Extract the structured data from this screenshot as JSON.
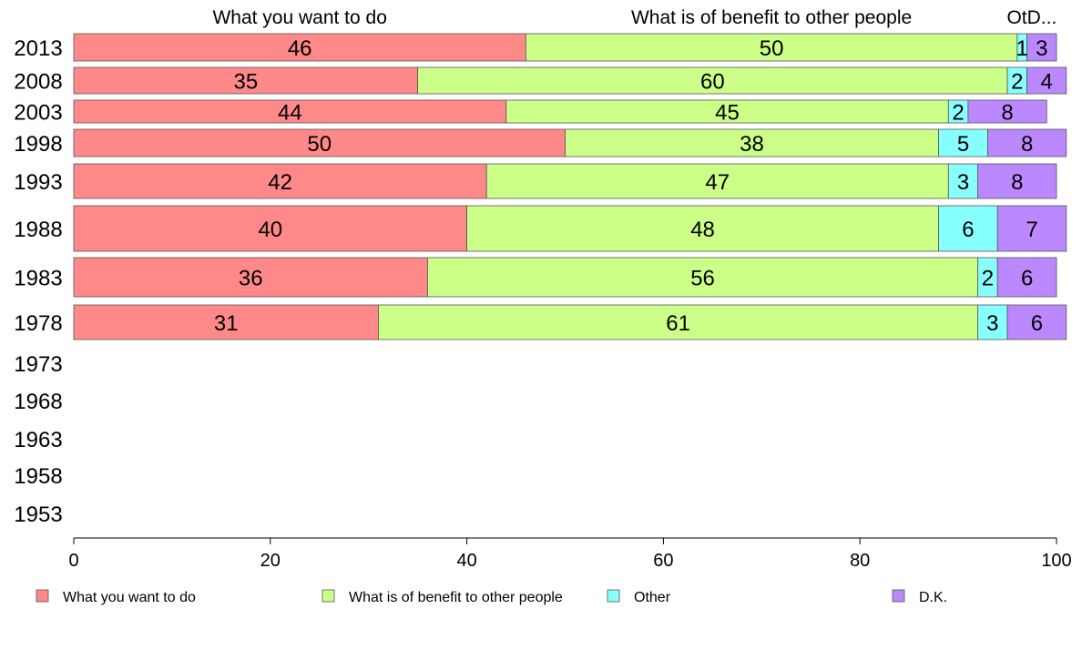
{
  "chart_data": {
    "type": "bar",
    "orientation": "horizontal",
    "stacked": true,
    "categories": [
      "2013",
      "2008",
      "2003",
      "1998",
      "1993",
      "1988",
      "1983",
      "1978",
      "1973",
      "1968",
      "1963",
      "1958",
      "1953"
    ],
    "series": [
      {
        "name": "What you want to do",
        "color": "#ff8888",
        "values": [
          46,
          35,
          44,
          50,
          42,
          40,
          36,
          31,
          null,
          null,
          null,
          null,
          null
        ]
      },
      {
        "name": "What is of benefit to other people",
        "color": "#ccff88",
        "values": [
          50,
          60,
          45,
          38,
          47,
          48,
          56,
          61,
          null,
          null,
          null,
          null,
          null
        ]
      },
      {
        "name": "Other",
        "color": "#88ffff",
        "values": [
          1,
          2,
          2,
          5,
          3,
          6,
          2,
          3,
          null,
          null,
          null,
          null,
          null
        ]
      },
      {
        "name": "D.K.",
        "color": "#bb88ff",
        "values": [
          3,
          4,
          8,
          8,
          8,
          7,
          6,
          6,
          null,
          null,
          null,
          null,
          null
        ]
      }
    ],
    "top_labels": [
      "What you want to do",
      "What is of benefit to other people",
      "Ot",
      "D..."
    ],
    "xlim": [
      0,
      100
    ],
    "xticks": [
      0,
      20,
      40,
      60,
      80,
      100
    ],
    "xlabel": "",
    "ylabel": "",
    "grid": false,
    "legend_position": "bottom"
  }
}
